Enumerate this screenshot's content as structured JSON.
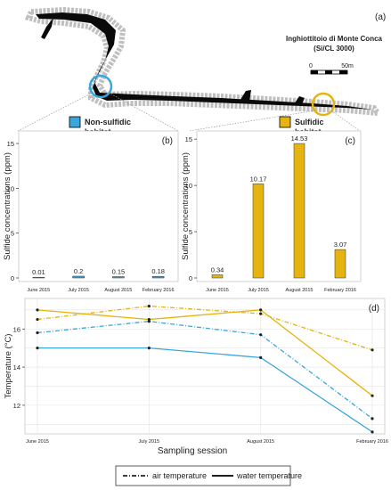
{
  "figure": {
    "panel_a_label": "(a)",
    "cave_title_line1": "Inghiottitoio di Monte Conca",
    "cave_title_line2": "(Si/CL 3000)",
    "scale_zero": "0",
    "scale_end": "50m",
    "non_sulfidic_label_line1": "Non-sulfidic",
    "non_sulfidic_label_line2": "habitat",
    "sulfidic_label_line1": "Sulfidic",
    "sulfidic_label_line2": "habitat",
    "colors": {
      "non_sulfidic": "#3aa6dd",
      "sulfidic": "#e6b40f",
      "cave": "#0a0a0a",
      "wall": "#bfbfbf"
    }
  },
  "chart_data": [
    {
      "id": "b",
      "type": "bar",
      "panel_label": "(b)",
      "ylabel": "Sulfide concentrations (ppm)",
      "categories": [
        "June 2015",
        "July 2015",
        "August 2015",
        "February 2016"
      ],
      "values": [
        0.01,
        0.2,
        0.15,
        0.18
      ],
      "value_labels": [
        "0.01",
        "0.2",
        "0.15",
        "0.18"
      ],
      "ylim": [
        0,
        16
      ],
      "yticks": [
        "0",
        "5",
        "10",
        "15"
      ],
      "color": "#3aa6dd"
    },
    {
      "id": "c",
      "type": "bar",
      "panel_label": "(c)",
      "ylabel": "Sulfide concentrations (ppm)",
      "categories": [
        "June 2015",
        "July 2015",
        "August 2015",
        "February 2016"
      ],
      "values": [
        0.34,
        10.17,
        14.53,
        3.07
      ],
      "value_labels": [
        "0.34",
        "10.17",
        "14.53",
        "3.07"
      ],
      "ylim": [
        0,
        15.5
      ],
      "yticks": [
        "0",
        "5",
        "10",
        "15"
      ],
      "color": "#e6b40f"
    },
    {
      "id": "d",
      "type": "line",
      "panel_label": "(d)",
      "xlabel": "Sampling session",
      "ylabel": "Temperature (°C)",
      "categories": [
        "June 2015",
        "July 2015",
        "August 2015",
        "February 2016"
      ],
      "yticks": [
        "12",
        "14",
        "16"
      ],
      "ylim": [
        10.5,
        17.6
      ],
      "grid": true,
      "series": [
        {
          "habitat": "sulfidic",
          "kind": "air",
          "values": [
            16.5,
            17.2,
            16.8,
            14.9
          ]
        },
        {
          "habitat": "sulfidic",
          "kind": "water",
          "values": [
            17.0,
            16.5,
            17.0,
            12.5
          ]
        },
        {
          "habitat": "non_sulfidic",
          "kind": "air",
          "values": [
            15.8,
            16.4,
            15.7,
            11.3
          ]
        },
        {
          "habitat": "non_sulfidic",
          "kind": "water",
          "values": [
            15.0,
            15.0,
            14.5,
            10.6
          ]
        }
      ]
    }
  ],
  "legend": {
    "air_label": "air temperature",
    "water_label": "water temperature"
  }
}
